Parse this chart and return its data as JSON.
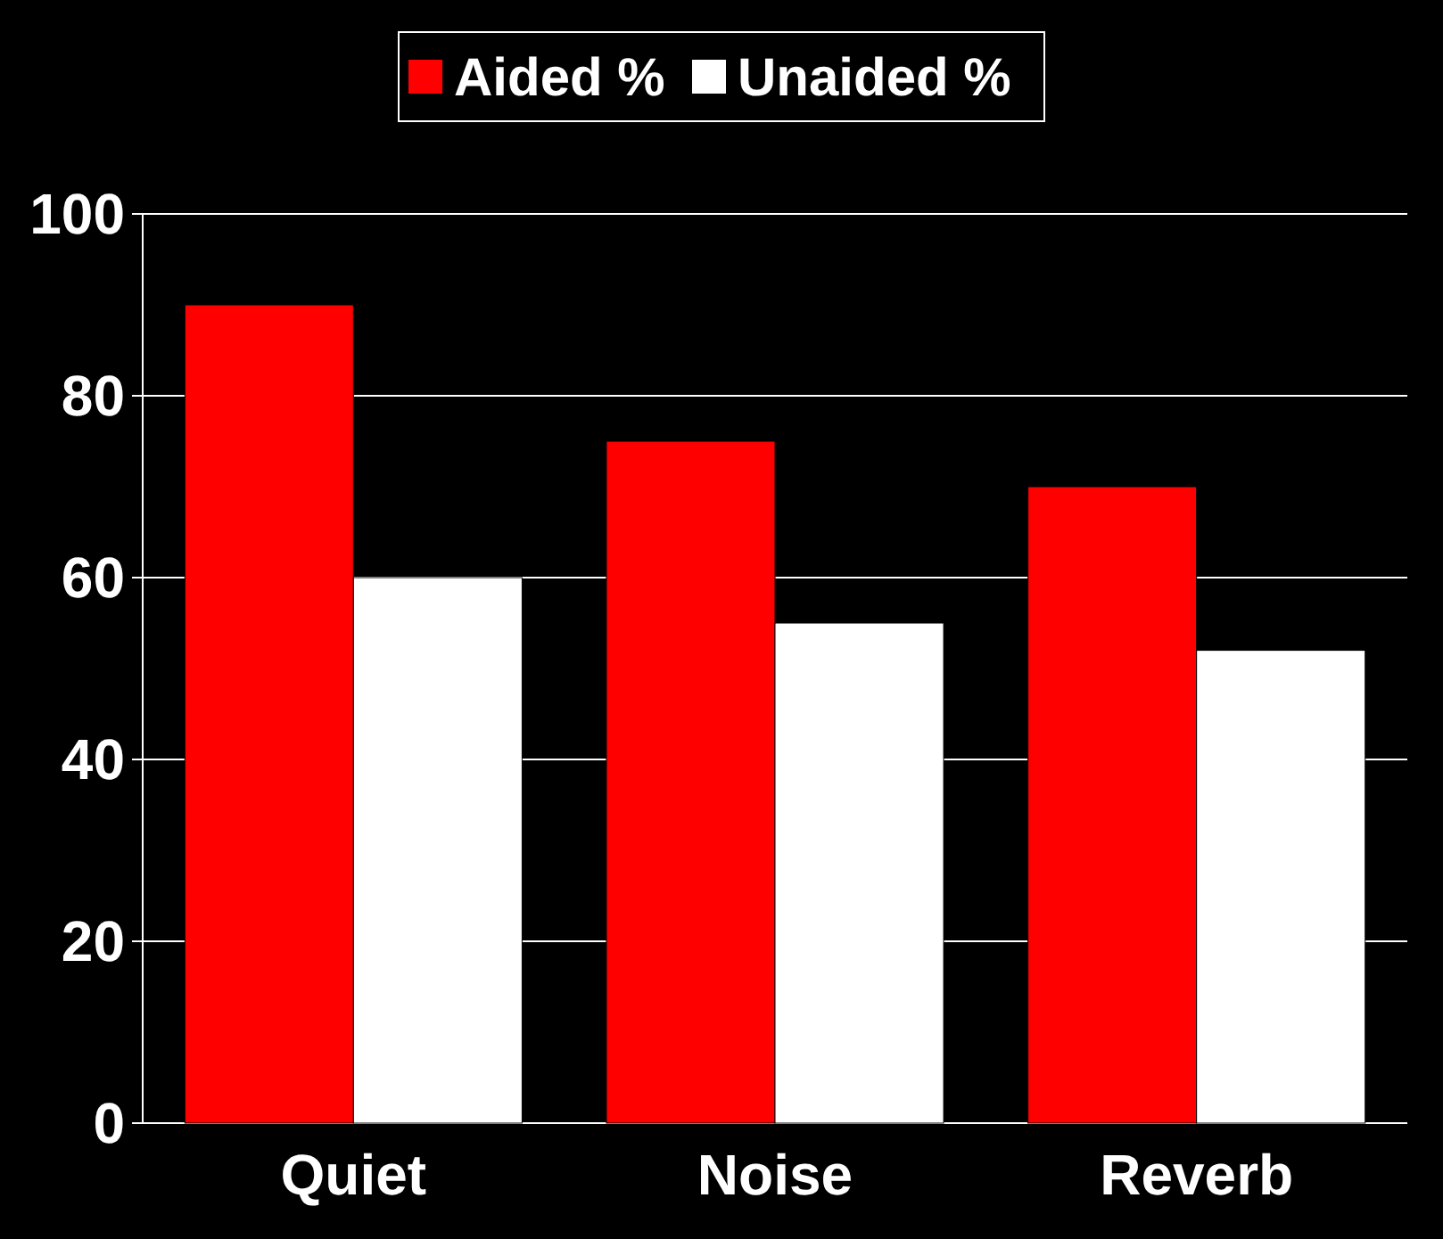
{
  "chart_data": {
    "type": "bar",
    "categories": [
      "Quiet",
      "Noise",
      "Reverb"
    ],
    "series": [
      {
        "name": "Aided %",
        "color": "#ff0000",
        "values": [
          90,
          75,
          70
        ]
      },
      {
        "name": "Unaided %",
        "color": "#ffffff",
        "values": [
          60,
          55,
          52
        ]
      }
    ],
    "ylim": [
      0,
      100
    ],
    "yticks": [
      0,
      20,
      40,
      60,
      80,
      100
    ],
    "grid": "y",
    "legend": "top"
  }
}
